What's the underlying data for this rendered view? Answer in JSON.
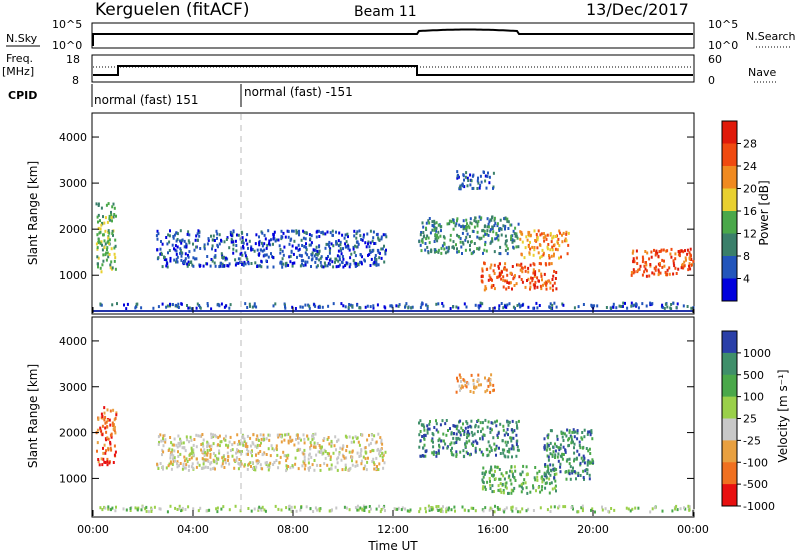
{
  "header": {
    "station": "Kerguelen (fitACF)",
    "beam": "Beam 11",
    "date": "13/Dec/2017"
  },
  "noise_panel": {
    "left_label": "N.Sky",
    "left_ticks": [
      "10^5",
      "10^0"
    ],
    "right_ticks": [
      "10^5",
      "10^0"
    ],
    "right_label": "N.Search"
  },
  "freq_panel": {
    "left_label_1": "Freq.",
    "left_label_2": "[MHz]",
    "left_ticks": [
      "18",
      "8"
    ],
    "right_ticks": [
      "60",
      "0"
    ],
    "right_label": "Nave"
  },
  "cpid": {
    "label": "CPID",
    "segments": [
      "normal (fast) 151",
      "normal (fast) -151"
    ]
  },
  "chart_data": [
    {
      "type": "heatmap",
      "panel": "power",
      "ylabel": "Slant Range [km]",
      "yticks": [
        1000,
        2000,
        3000,
        4000
      ],
      "ylim": [
        180,
        4500
      ],
      "xlim": [
        "00:00",
        "24:00"
      ],
      "colorbar_label": "Power [dB]",
      "colorbar_ticks": [
        4,
        8,
        12,
        16,
        20,
        24,
        28
      ],
      "colors": [
        "#0000dd",
        "#2255bb",
        "#3a7f6a",
        "#4aa84a",
        "#e8d030",
        "#f08a20",
        "#f04a10",
        "#e01a0a"
      ],
      "scatter_regions": [
        {
          "t_start": 0.2,
          "t_end": 12.8,
          "range_km": [
            300,
            420
          ],
          "level": 1
        },
        {
          "t_start": 13.0,
          "t_end": 24.0,
          "range_km": [
            300,
            430
          ],
          "level": 1
        },
        {
          "t_start": 0.1,
          "t_end": 0.9,
          "range_km": [
            1100,
            2600
          ],
          "level": 3
        },
        {
          "t_start": 2.5,
          "t_end": 11.7,
          "range_km": [
            1200,
            2000
          ],
          "level": 1
        },
        {
          "t_start": 13.0,
          "t_end": 17.0,
          "range_km": [
            1500,
            2300
          ],
          "level": 2
        },
        {
          "t_start": 17.0,
          "t_end": 19.0,
          "range_km": [
            1400,
            2000
          ],
          "level": 5
        },
        {
          "t_start": 15.5,
          "t_end": 18.5,
          "range_km": [
            700,
            1300
          ],
          "level": 6
        },
        {
          "t_start": 21.5,
          "t_end": 24.0,
          "range_km": [
            1000,
            1600
          ],
          "level": 6
        },
        {
          "t_start": 14.5,
          "t_end": 16.0,
          "range_km": [
            2900,
            3300
          ],
          "level": 1
        }
      ]
    },
    {
      "type": "heatmap",
      "panel": "velocity",
      "ylabel": "Slant Range [km]",
      "yticks": [
        1000,
        2000,
        3000,
        4000
      ],
      "ylim": [
        180,
        4500
      ],
      "xlim": [
        "00:00",
        "24:00"
      ],
      "xticks": [
        "00:00",
        "04:00",
        "08:00",
        "12:00",
        "16:00",
        "20:00",
        "00:00"
      ],
      "xlabel": "Time UT",
      "colorbar_label": "Velocity [m s⁻¹]",
      "colorbar_ticks": [
        1000,
        500,
        100,
        25,
        -25,
        -100,
        -500,
        -1000
      ],
      "colors": [
        "#2a3fa8",
        "#3f8f6a",
        "#4aa84a",
        "#9ad04a",
        "#c8c8c8",
        "#e8a040",
        "#f07020",
        "#e81010"
      ],
      "scatter_regions": [
        {
          "t_start": 0.2,
          "t_end": 12.8,
          "range_km": [
            300,
            430
          ],
          "level": 3
        },
        {
          "t_start": 13.0,
          "t_end": 24.0,
          "range_km": [
            300,
            430
          ],
          "level": 3
        },
        {
          "t_start": 0.1,
          "t_end": 0.9,
          "range_km": [
            1300,
            2600
          ],
          "level": 6
        },
        {
          "t_start": 2.5,
          "t_end": 11.7,
          "range_km": [
            1200,
            2000
          ],
          "level": 4
        },
        {
          "t_start": 13.0,
          "t_end": 17.0,
          "range_km": [
            1500,
            2300
          ],
          "level": 1
        },
        {
          "t_start": 15.5,
          "t_end": 18.5,
          "range_km": [
            700,
            1300
          ],
          "level": 2
        },
        {
          "t_start": 18.0,
          "t_end": 20.0,
          "range_km": [
            1000,
            2100
          ],
          "level": 1
        },
        {
          "t_start": 14.5,
          "t_end": 16.0,
          "range_km": [
            2900,
            3300
          ],
          "level": 5
        }
      ]
    }
  ]
}
